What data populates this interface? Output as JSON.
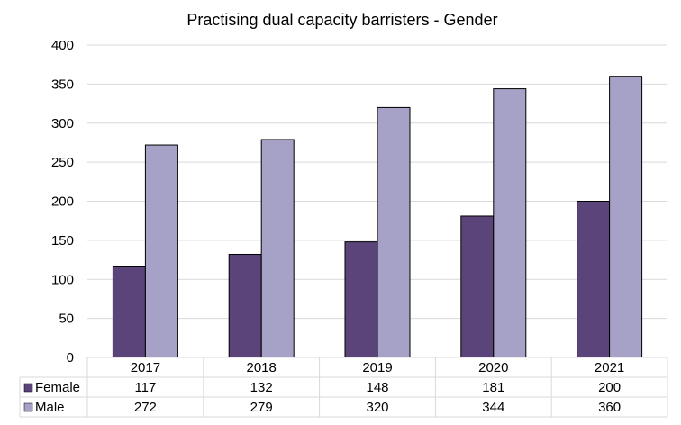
{
  "chart_data": {
    "type": "bar",
    "title": "Practising dual capacity barristers - Gender",
    "categories": [
      "2017",
      "2018",
      "2019",
      "2020",
      "2021"
    ],
    "series": [
      {
        "name": "Female",
        "color": "#5b4479",
        "values": [
          117,
          132,
          148,
          181,
          200
        ]
      },
      {
        "name": "Male",
        "color": "#a6a1c6",
        "values": [
          272,
          279,
          320,
          344,
          360
        ]
      }
    ],
    "ylim": [
      0,
      400
    ],
    "yticks": [
      0,
      50,
      100,
      150,
      200,
      250,
      300,
      350,
      400
    ],
    "grid": true,
    "legend": "data-table"
  }
}
